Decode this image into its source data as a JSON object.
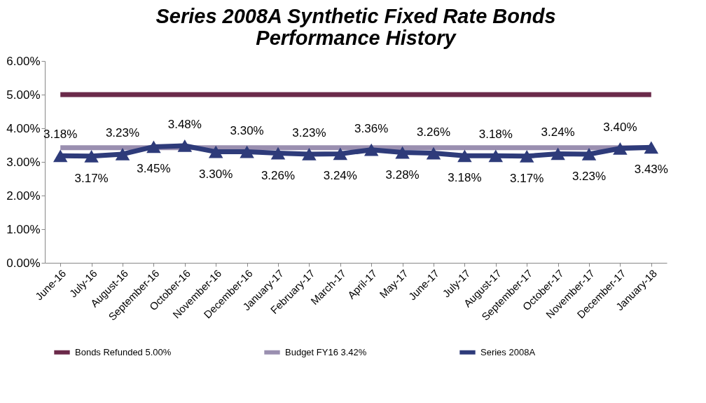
{
  "chart_data": {
    "type": "line",
    "title": "Series 2008A Synthetic Fixed Rate Bonds\nPerformance History",
    "categories": [
      "June-16",
      "July-16",
      "August-16",
      "September-16",
      "October-16",
      "November-16",
      "December-16",
      "January-17",
      "February-17",
      "March-17",
      "April-17",
      "May-17",
      "June-17",
      "July-17",
      "August-17",
      "September-17",
      "October-17",
      "November-17",
      "December-17",
      "January-18"
    ],
    "series": [
      {
        "name": "Bonds Refunded 5.00%",
        "color": "#6b2a4a",
        "values": [
          5,
          5,
          5,
          5,
          5,
          5,
          5,
          5,
          5,
          5,
          5,
          5,
          5,
          5,
          5,
          5,
          5,
          5,
          5,
          5
        ]
      },
      {
        "name": "Budget FY16 3.42%",
        "color": "#9a8fb0",
        "values": [
          3.42,
          3.42,
          3.42,
          3.42,
          3.42,
          3.42,
          3.42,
          3.42,
          3.42,
          3.42,
          3.42,
          3.42,
          3.42,
          3.42,
          3.42,
          3.42,
          3.42,
          3.42,
          3.42,
          3.42
        ]
      },
      {
        "name": "Series 2008A",
        "color": "#2e3b7a",
        "marker": "triangle",
        "values": [
          3.18,
          3.17,
          3.23,
          3.45,
          3.48,
          3.3,
          3.3,
          3.26,
          3.23,
          3.24,
          3.36,
          3.28,
          3.26,
          3.18,
          3.18,
          3.17,
          3.24,
          3.23,
          3.4,
          3.43
        ],
        "value_labels": [
          "3.18%",
          "3.17%",
          "3.23%",
          "3.45%",
          "3.48%",
          "3.30%",
          "3.30%",
          "3.26%",
          "3.23%",
          "3.24%",
          "3.36%",
          "3.28%",
          "3.26%",
          "3.18%",
          "3.18%",
          "3.17%",
          "3.24%",
          "3.23%",
          "3.40%",
          "3.43%"
        ]
      }
    ],
    "ylim": [
      0,
      6
    ],
    "yticks": [
      {
        "value": 0,
        "label": "0.00%"
      },
      {
        "value": 1,
        "label": "1.00%"
      },
      {
        "value": 2,
        "label": "2.00%"
      },
      {
        "value": 3,
        "label": "3.00%"
      },
      {
        "value": 4,
        "label": "4.00%"
      },
      {
        "value": 5,
        "label": "5.00%"
      },
      {
        "value": 6,
        "label": "6.00%"
      }
    ],
    "grid": false,
    "legend": "bottom"
  }
}
